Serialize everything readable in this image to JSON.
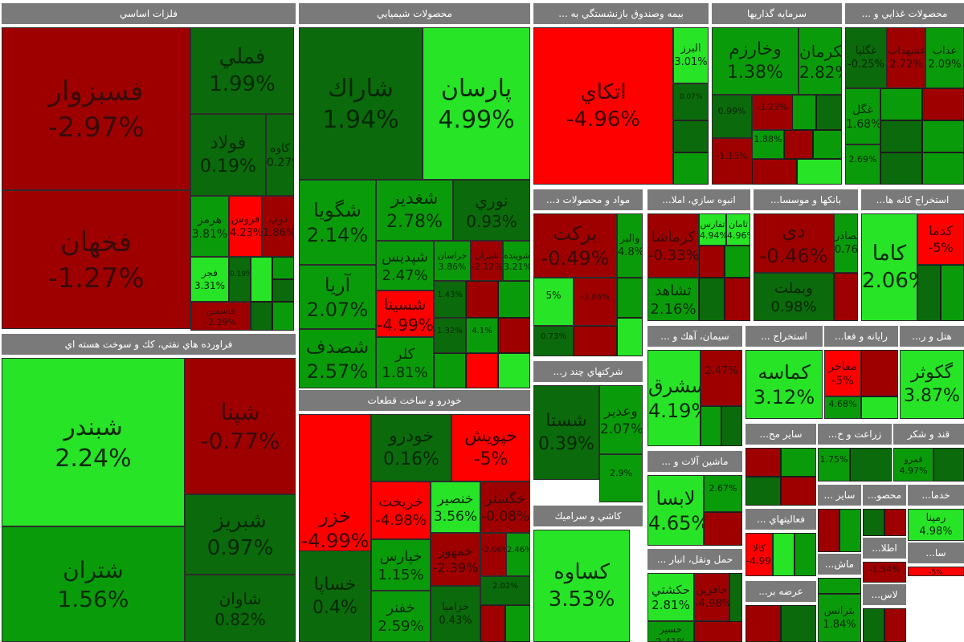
{
  "colors": {
    "dark_red": "#9e0000",
    "red": "#ff0000",
    "dark_green": "#0b6a0b",
    "green": "#0a9b0a",
    "light_green": "#27e427",
    "header_gray": "#7a7a7a"
  },
  "sectors": [
    {
      "id": "s1",
      "title": "فلزات اساسي",
      "tiles": [
        {
          "name": "فسبزوار",
          "pct": "-2.97%"
        },
        {
          "name": "فملي",
          "pct": "1.99%"
        },
        {
          "name": "فولاد",
          "pct": "0.19%"
        },
        {
          "name": "كاوه",
          "pct": "0.27%"
        },
        {
          "name": "فخهان",
          "pct": "-1.27%"
        },
        {
          "name": "هرمز",
          "pct": "3.81%"
        },
        {
          "name": "فروس",
          "pct": "4.23%"
        },
        {
          "name": "ذوب",
          "pct": "1.86%"
        },
        {
          "name": "فجر",
          "pct": "3.31%"
        },
        {
          "name": "",
          "pct": "0.19%"
        },
        {
          "name": "فاسمين",
          "pct": "-2.29%"
        }
      ]
    },
    {
      "id": "s2",
      "title": "فراورده هاي نفتي، كك و سوخت هسته اي",
      "tiles": [
        {
          "name": "شبندر",
          "pct": "2.24%"
        },
        {
          "name": "شپنا",
          "pct": "-0.77%"
        },
        {
          "name": "شتران",
          "pct": "1.56%"
        },
        {
          "name": "شبريز",
          "pct": "0.97%"
        },
        {
          "name": "شاوان",
          "pct": "0.82%"
        }
      ]
    },
    {
      "id": "s3",
      "title": "محصولات شيميايي",
      "tiles": [
        {
          "name": "شاراك",
          "pct": "1.94%"
        },
        {
          "name": "پارسان",
          "pct": "4.99%"
        },
        {
          "name": "شگويا",
          "pct": "2.14%"
        },
        {
          "name": "شغدير",
          "pct": "2.78%"
        },
        {
          "name": "نوري",
          "pct": "0.93%"
        },
        {
          "name": "آريا",
          "pct": "2.07%"
        },
        {
          "name": "شپديس",
          "pct": "2.47%"
        },
        {
          "name": "خراسان",
          "pct": "3.86%"
        },
        {
          "name": "شيران",
          "pct": "-2.12%"
        },
        {
          "name": "شوينده",
          "pct": "3.21%"
        },
        {
          "name": "شسينا",
          "pct": "-4.99%"
        },
        {
          "name": "شصدف",
          "pct": "2.57%"
        },
        {
          "name": "كلر",
          "pct": "1.81%"
        },
        {
          "name": "",
          "pct": "1.43%"
        },
        {
          "name": "",
          "pct": "1.32%"
        },
        {
          "name": "",
          "pct": "4.1%"
        }
      ]
    },
    {
      "id": "s4",
      "title": "خودرو و ساخت قطعات",
      "tiles": [
        {
          "name": "خزر",
          "pct": "-4.99%"
        },
        {
          "name": "خودرو",
          "pct": "0.16%"
        },
        {
          "name": "خپويش",
          "pct": "-5%"
        },
        {
          "name": "خريخت",
          "pct": "-4.98%"
        },
        {
          "name": "خنصير",
          "pct": "3.56%"
        },
        {
          "name": "خگستر",
          "pct": "-0.08%"
        },
        {
          "name": "خپارس",
          "pct": "1.15%"
        },
        {
          "name": "خمهور",
          "pct": "-2.39%"
        },
        {
          "name": "خساپا",
          "pct": "0.4%"
        },
        {
          "name": "خفنر",
          "pct": "2.59%"
        },
        {
          "name": "خزاميا",
          "pct": "0.43%"
        },
        {
          "name": "",
          "pct": "-2.06%"
        },
        {
          "name": "",
          "pct": "2.46%"
        },
        {
          "name": "",
          "pct": "2.02%"
        }
      ]
    },
    {
      "id": "s5",
      "title": "بيمه وصندوق بازنشستگي به ...",
      "tiles": [
        {
          "name": "اتكاي",
          "pct": "-4.96%"
        },
        {
          "name": "البرز",
          "pct": "3.01%"
        },
        {
          "name": "",
          "pct": "0.07%"
        }
      ]
    },
    {
      "id": "s6",
      "title": "سرمايه گذاريها",
      "tiles": [
        {
          "name": "وخارزم",
          "pct": "1.38%"
        },
        {
          "name": "وسكرمان",
          "pct": "2.82%"
        },
        {
          "name": "",
          "pct": "0.99%"
        },
        {
          "name": "",
          "pct": "-1.13%"
        },
        {
          "name": "",
          "pct": "-3.23%"
        },
        {
          "name": "",
          "pct": "1.88%"
        }
      ]
    },
    {
      "id": "s7",
      "title": "محصولات غذايي و ...",
      "tiles": [
        {
          "name": "عداب",
          "pct": "2.09%"
        },
        {
          "name": "غشهداب",
          "pct": "2.72%"
        },
        {
          "name": "غگلپا",
          "pct": "-0.25%"
        },
        {
          "name": "غگل",
          "pct": "1.68%"
        },
        {
          "name": "",
          "pct": "2.69%"
        }
      ]
    },
    {
      "id": "s8",
      "title": "مواد و محصولات د...",
      "tiles": [
        {
          "name": "بركت",
          "pct": "-0.49%"
        },
        {
          "name": "والبر",
          "pct": "4.8%"
        },
        {
          "name": "",
          "pct": "5%"
        },
        {
          "name": "",
          "pct": "-3.86%"
        },
        {
          "name": "",
          "pct": "0.73%"
        }
      ]
    },
    {
      "id": "s9",
      "title": "انبوه سازي، املا...",
      "tiles": [
        {
          "name": "كرماشا",
          "pct": "-0.33%"
        },
        {
          "name": "تفارس",
          "pct": "4.94%"
        },
        {
          "name": "ثامان",
          "pct": "4.96%"
        },
        {
          "name": "ثشاهد",
          "pct": "2.16%"
        }
      ]
    },
    {
      "id": "s10",
      "title": "بانكها و موسسا...",
      "tiles": [
        {
          "name": "دي",
          "pct": "-0.46%"
        },
        {
          "name": "وبصادر",
          "pct": "0.76%"
        },
        {
          "name": "وبملت",
          "pct": "0.98%"
        }
      ]
    },
    {
      "id": "s11",
      "title": "استخراج كانه ها...",
      "tiles": [
        {
          "name": "كاما",
          "pct": "2.06%"
        },
        {
          "name": "كدما",
          "pct": "-5%"
        }
      ]
    },
    {
      "id": "s12",
      "title": "شركتهاي چند ر...",
      "tiles": [
        {
          "name": "شستا",
          "pct": "0.39%"
        },
        {
          "name": "وعدير",
          "pct": "2.07%"
        },
        {
          "name": "",
          "pct": "2.9%"
        }
      ]
    },
    {
      "id": "s13",
      "title": "سيمان، آهك و ...",
      "tiles": [
        {
          "name": "سشرق",
          "pct": "4.19%"
        },
        {
          "name": "",
          "pct": "2.47%"
        }
      ]
    },
    {
      "id": "s14",
      "title": "استخراج ...",
      "tiles": [
        {
          "name": "كماسه",
          "pct": "3.12%"
        }
      ]
    },
    {
      "id": "s15",
      "title": "رايانه و فعا...",
      "tiles": [
        {
          "name": "مفاخر",
          "pct": "-5%"
        },
        {
          "name": "",
          "pct": "4.68%"
        }
      ]
    },
    {
      "id": "s16",
      "title": "هتل و ر...",
      "tiles": [
        {
          "name": "گكوثر",
          "pct": "3.87%"
        }
      ]
    },
    {
      "id": "s17",
      "title": "كاشي و سراميك",
      "tiles": [
        {
          "name": "كساوه",
          "pct": "3.53%"
        }
      ]
    },
    {
      "id": "s18",
      "title": "ماشين آلات و ...",
      "tiles": [
        {
          "name": "لابسا",
          "pct": "4.65%"
        },
        {
          "name": "",
          "pct": "2.67%"
        }
      ]
    },
    {
      "id": "s19",
      "title": "ساير مح...",
      "tiles": []
    },
    {
      "id": "s20",
      "title": "زراعت و خ...",
      "tiles": [
        {
          "name": "",
          "pct": "1.75%"
        }
      ]
    },
    {
      "id": "s21",
      "title": "قند و شكر",
      "tiles": [
        {
          "name": "قمرو",
          "pct": "4.97%"
        }
      ]
    },
    {
      "id": "s22",
      "title": "فعاليتهاي ...",
      "tiles": [
        {
          "name": "كالا",
          "pct": "-4.99%"
        }
      ]
    },
    {
      "id": "s23",
      "title": "ساير ...",
      "tiles": []
    },
    {
      "id": "s24",
      "title": "محصو...",
      "tiles": []
    },
    {
      "id": "s25",
      "title": "خدما...",
      "tiles": [
        {
          "name": "رمپنا",
          "pct": "4.98%"
        }
      ]
    },
    {
      "id": "s26",
      "title": "حمل ونقل، انبار ...",
      "tiles": [
        {
          "name": "حكشتي",
          "pct": "2.81%"
        },
        {
          "name": "حافرين",
          "pct": "-4.98%"
        },
        {
          "name": "حسير",
          "pct": "2.41%"
        }
      ]
    },
    {
      "id": "s27",
      "title": "عرضه بر...",
      "tiles": []
    },
    {
      "id": "s28",
      "title": "ماش...",
      "tiles": [
        {
          "name": "بترانس",
          "pct": "1.84%"
        }
      ]
    },
    {
      "id": "s29",
      "title": "اطلا...",
      "tiles": [
        {
          "name": "",
          "pct": "-1.54%"
        }
      ]
    },
    {
      "id": "s30",
      "title": "سا...",
      "tiles": [
        {
          "name": "",
          "pct": "-5%"
        }
      ]
    },
    {
      "id": "s31",
      "title": "لاس...",
      "tiles": []
    }
  ]
}
